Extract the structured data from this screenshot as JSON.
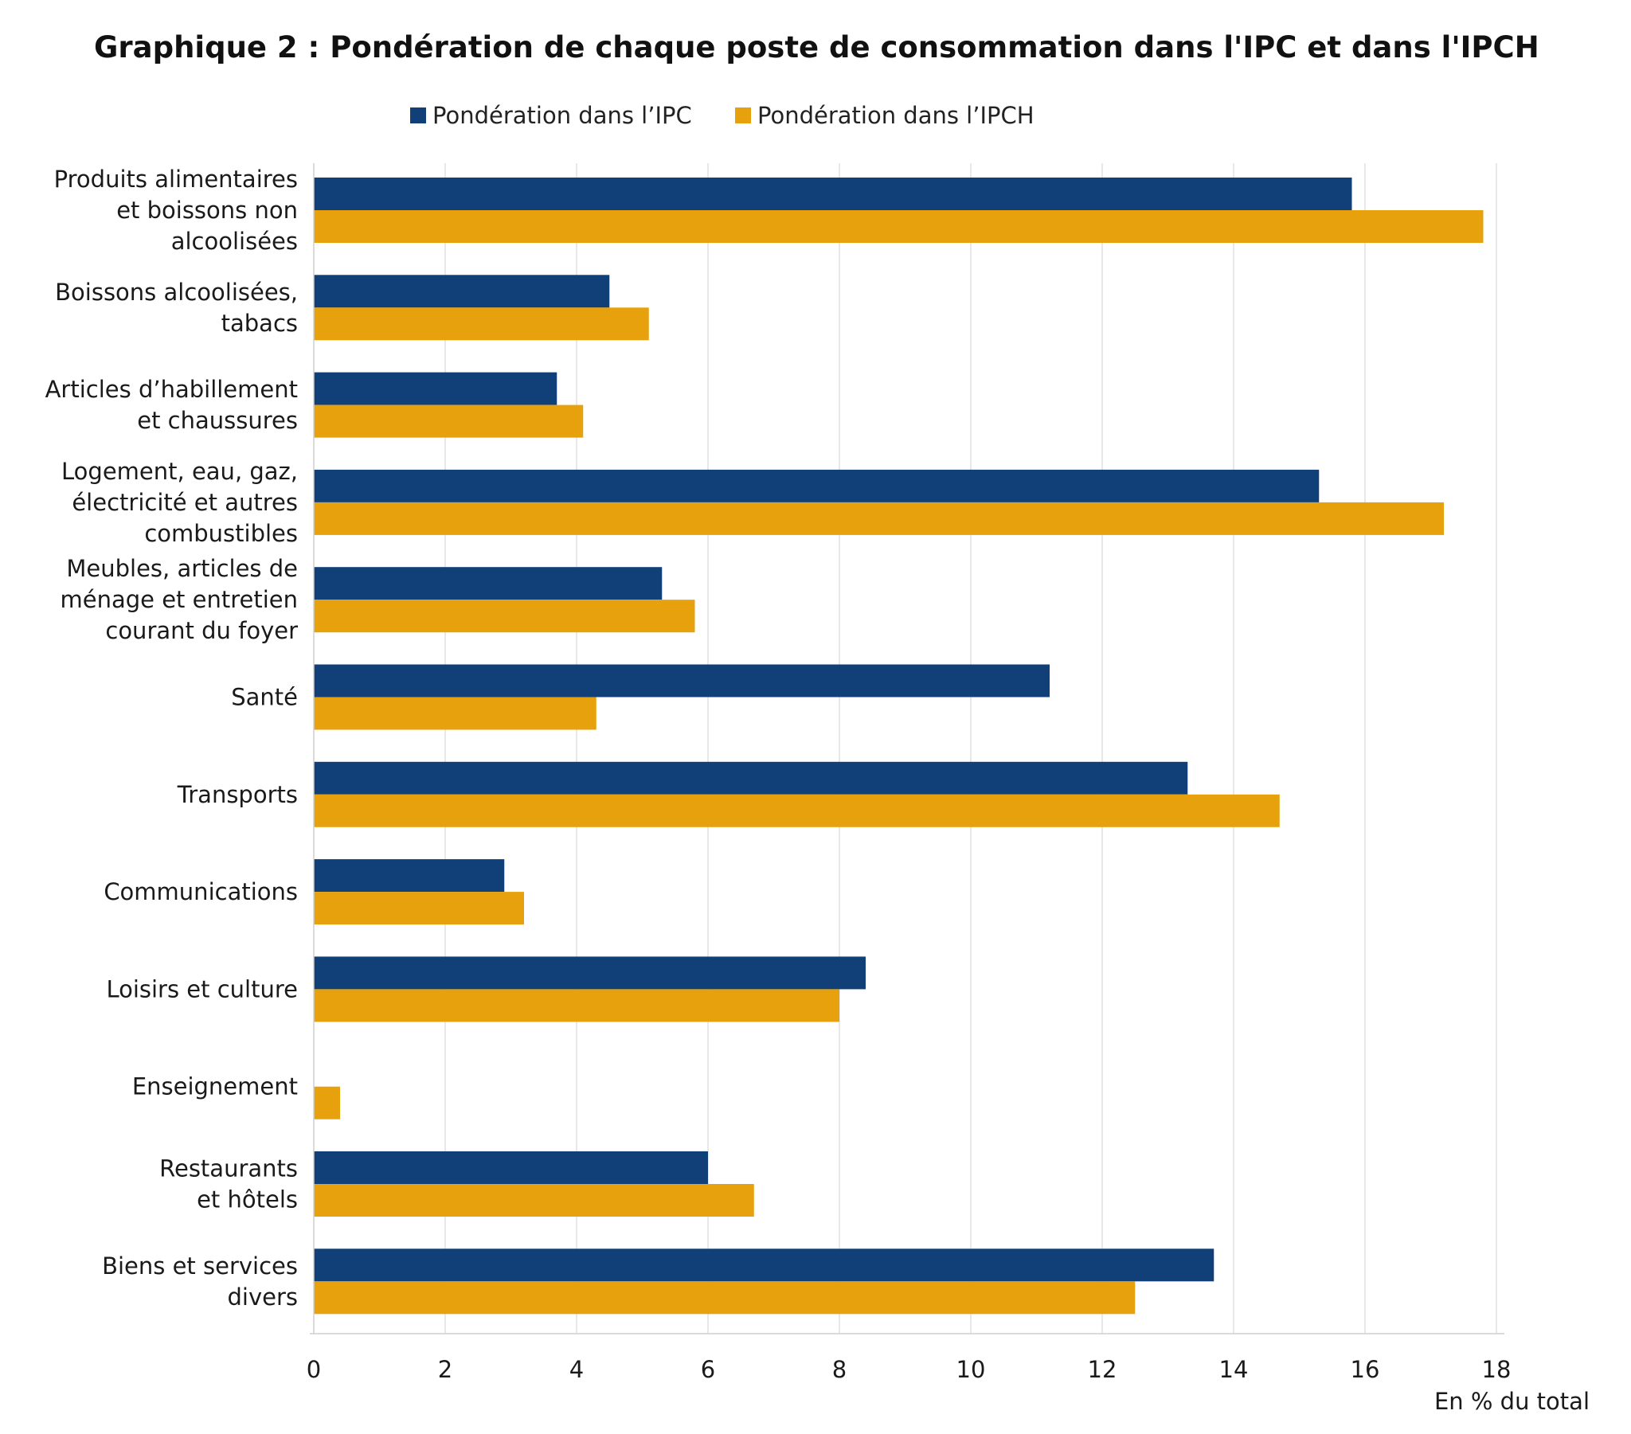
{
  "chart_data": {
    "type": "bar",
    "orientation": "horizontal",
    "title": "Graphique 2 : Pondération de chaque poste de consommation dans l'IPC et dans l'IPCH",
    "xlabel": "En % du total",
    "ylabel": "",
    "xlim": [
      0,
      18
    ],
    "xticks": [
      0,
      2,
      4,
      6,
      8,
      10,
      12,
      14,
      16,
      18
    ],
    "grid": "vertical",
    "legend_position": "top",
    "categories": [
      [
        "Produits alimentaires",
        "et boissons non",
        "alcoolisées"
      ],
      [
        "Boissons alcoolisées,",
        "tabacs"
      ],
      [
        "Articles d’habillement",
        "et chaussures"
      ],
      [
        "Logement, eau, gaz,",
        "électricité et autres",
        "combustibles"
      ],
      [
        "Meubles, articles de",
        "ménage et entretien",
        "courant du foyer"
      ],
      [
        "Santé"
      ],
      [
        "Transports"
      ],
      [
        "Communications"
      ],
      [
        "Loisirs et culture"
      ],
      [
        "Enseignement"
      ],
      [
        "Restaurants",
        "et hôtels"
      ],
      [
        "Biens et services",
        "divers"
      ]
    ],
    "series": [
      {
        "name": "Pondération dans l’IPC",
        "color": "#113f77",
        "values": [
          15.8,
          4.5,
          3.7,
          15.3,
          5.3,
          11.2,
          13.3,
          2.9,
          8.4,
          0.0,
          6.0,
          13.7
        ]
      },
      {
        "name": "Pondération dans l’IPCH",
        "color": "#e6a10c",
        "values": [
          17.8,
          5.1,
          4.1,
          17.2,
          5.8,
          4.3,
          14.7,
          3.2,
          8.0,
          0.4,
          6.7,
          12.5
        ]
      }
    ]
  }
}
